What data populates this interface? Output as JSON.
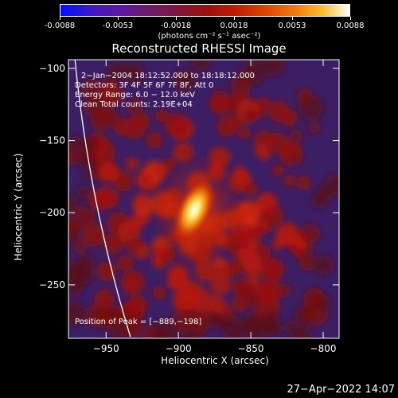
{
  "colorbar": {
    "ticks": [
      "-0.0088",
      "-0.0053",
      "-0.0018",
      "0.0018",
      "0.0053",
      "0.0088"
    ],
    "units_text": "(photons cm⁻² s⁻¹ asec⁻²)"
  },
  "chart_data": {
    "type": "heatmap",
    "title": "Reconstructed RHESSI Image",
    "xlabel": "Heliocentric X (arcsec)",
    "ylabel": "Heliocentric Y (arcsec)",
    "xlim": [
      -976,
      -789
    ],
    "ylim": [
      -287,
      -94
    ],
    "xticks": [
      -950,
      -900,
      -850,
      -800
    ],
    "yticks": [
      -100,
      -150,
      -200,
      -250
    ],
    "xtick_labels": [
      "−950",
      "−900",
      "−850",
      "−800"
    ],
    "ytick_labels": [
      "−100",
      "−150",
      "−200",
      "−250"
    ],
    "color_range": [
      -0.0088,
      0.0088
    ],
    "peak": {
      "x": -889,
      "y": -198
    },
    "annotations": [
      "2−Jan−2004 18:12:52.000 to 18:18:12.000",
      "Detectors: 3F 4F 5F 6F 7F 8F, Att 0",
      "Energy Range: 6.0 − 12.0 keV",
      "Clean     Total counts: 2.19E+04"
    ],
    "peak_label": "Position of Peak = [−889,−198]",
    "colors": {
      "peak": "#ffffff",
      "high": "#f8c030",
      "mid": "#c01808",
      "low": "#7a1a3a",
      "background": "#3c1e64"
    }
  },
  "timestamp": "27−Apr−2022 14:07"
}
